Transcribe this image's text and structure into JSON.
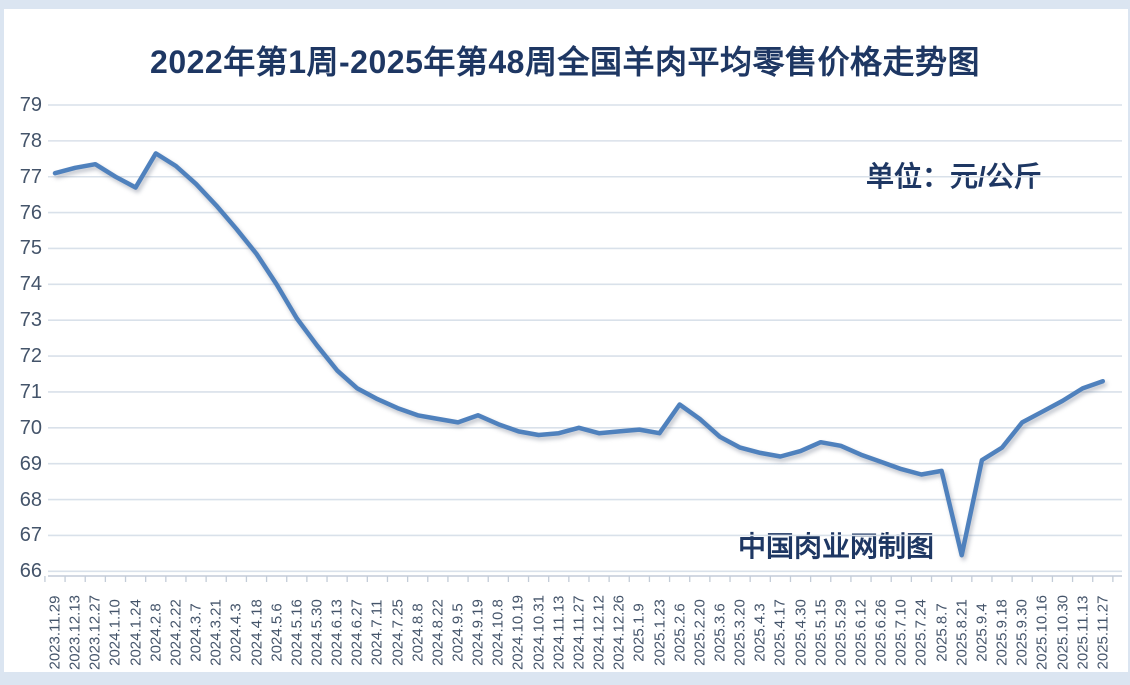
{
  "chart": {
    "title": "2022年第1周-2025年第48周全国羊肉平均零售价格走势图",
    "unit_label": "单位：元/公斤",
    "credit_label": "中国肉业网制图",
    "colors": {
      "title_text": "#1e3763",
      "line": "#4f81bd",
      "axis_text": "#44546a",
      "gridline": "#d9e1ea",
      "axis_line": "#c3ccd8",
      "frame": "#dbe5f1",
      "background": "#ffffff"
    }
  },
  "chart_data": {
    "type": "line",
    "title": "2022年第1周-2025年第48周全国羊肉平均零售价格走势图",
    "unit": "元/公斤",
    "ylabel": "",
    "xlabel": "",
    "ylim": [
      66,
      79
    ],
    "yticks": [
      79,
      78,
      77,
      76,
      75,
      74,
      73,
      72,
      71,
      70,
      69,
      68,
      67,
      66
    ],
    "grid": "horizontal",
    "legend": "none",
    "categories": [
      "2023.11.29",
      "2023.12.13",
      "2023.12.27",
      "2024.1.10",
      "2024.1.24",
      "2024.2.8",
      "2024.2.22",
      "2024.3.7",
      "2024.3.21",
      "2024.4.3",
      "2024.4.18",
      "2024.5.6",
      "2024.5.16",
      "2024.5.30",
      "2024.6.13",
      "2024.6.27",
      "2024.7.11",
      "2024.7.25",
      "2024.8.8",
      "2024.8.22",
      "2024.9.5",
      "2024.9.19",
      "2024.10.8",
      "2024.10.19",
      "2024.10.31",
      "2024.11.13",
      "2024.11.27",
      "2024.12.12",
      "2024.12.26",
      "2025.1.9",
      "2025.1.23",
      "2025.2.6",
      "2025.2.20",
      "2025.3.6",
      "2025.3.20",
      "2025.4.3",
      "2025.4.17",
      "2025.4.30",
      "2025.5.15",
      "2025.5.29",
      "2025.6.12",
      "2025.6.26",
      "2025.7.10",
      "2025.7.24",
      "2025.8.7",
      "2025.8.21",
      "2025.9.4",
      "2025.9.18",
      "2025.9.30",
      "2025.10.16",
      "2025.10.30",
      "2025.11.13",
      "2025.11.27"
    ],
    "values": [
      77.1,
      77.25,
      77.35,
      77.0,
      76.7,
      77.65,
      77.3,
      76.8,
      76.2,
      75.55,
      74.85,
      74.0,
      73.05,
      72.3,
      71.6,
      71.1,
      70.8,
      70.55,
      70.35,
      70.25,
      70.15,
      70.35,
      70.1,
      69.9,
      69.8,
      69.85,
      70.0,
      69.85,
      69.9,
      69.95,
      69.85,
      70.65,
      70.25,
      69.75,
      69.45,
      69.3,
      69.2,
      69.35,
      69.6,
      69.5,
      69.25,
      69.05,
      68.85,
      68.7,
      68.8,
      66.45,
      69.1,
      69.45,
      70.15,
      70.45,
      70.75,
      71.1,
      71.3
    ]
  }
}
